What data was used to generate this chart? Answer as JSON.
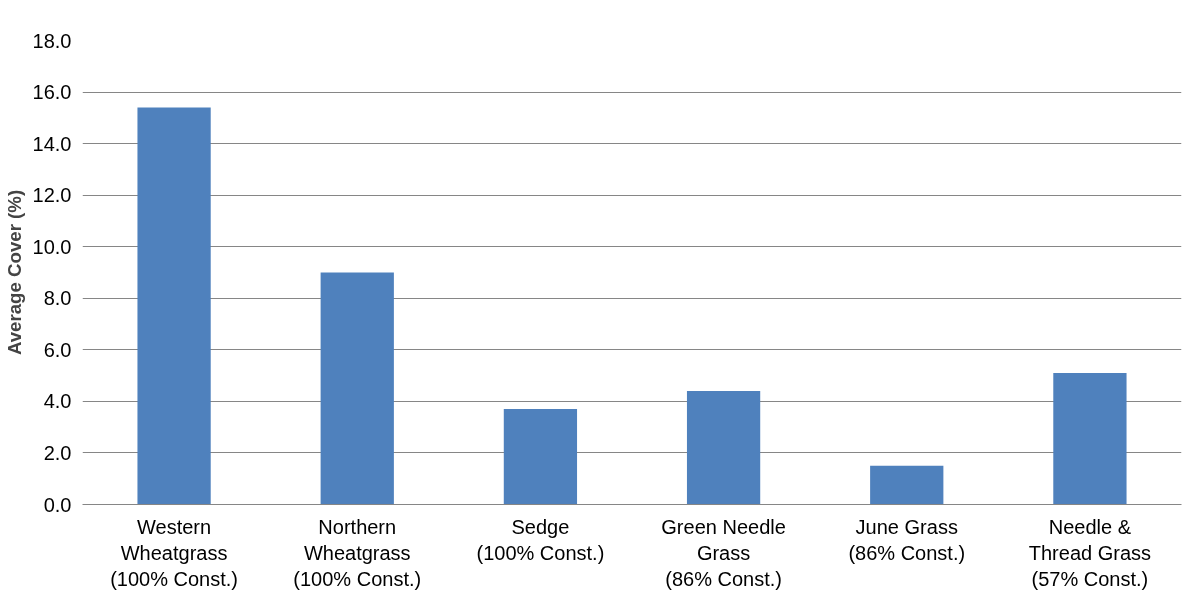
{
  "chart_data": {
    "type": "bar",
    "ylabel": "Average Cover (%)",
    "categories": [
      "Western\nWheatgrass\n(100% Const.)",
      "Northern\nWheatgrass\n(100% Const.)",
      "Sedge\n(100% Const.)",
      "Green Needle\nGrass\n(86% Const.)",
      "June Grass\n(86% Const.)",
      "Needle &\nThread Grass\n(57% Const.)"
    ],
    "values": [
      15.4,
      9.0,
      3.7,
      4.4,
      1.5,
      5.1
    ],
    "color": "#4f81bd",
    "ylim": [
      0,
      18
    ],
    "yticks": [
      {
        "value": 0,
        "label": "0.0"
      },
      {
        "value": 2,
        "label": "2.0"
      },
      {
        "value": 4,
        "label": "4.0"
      },
      {
        "value": 6,
        "label": "6.0"
      },
      {
        "value": 8,
        "label": "8.0"
      },
      {
        "value": 10,
        "label": "10.0"
      },
      {
        "value": 12,
        "label": "12.0"
      },
      {
        "value": 14,
        "label": "14.0"
      },
      {
        "value": 16,
        "label": "16.0"
      },
      {
        "value": 18,
        "label": "18.0"
      }
    ],
    "grid": "y"
  }
}
